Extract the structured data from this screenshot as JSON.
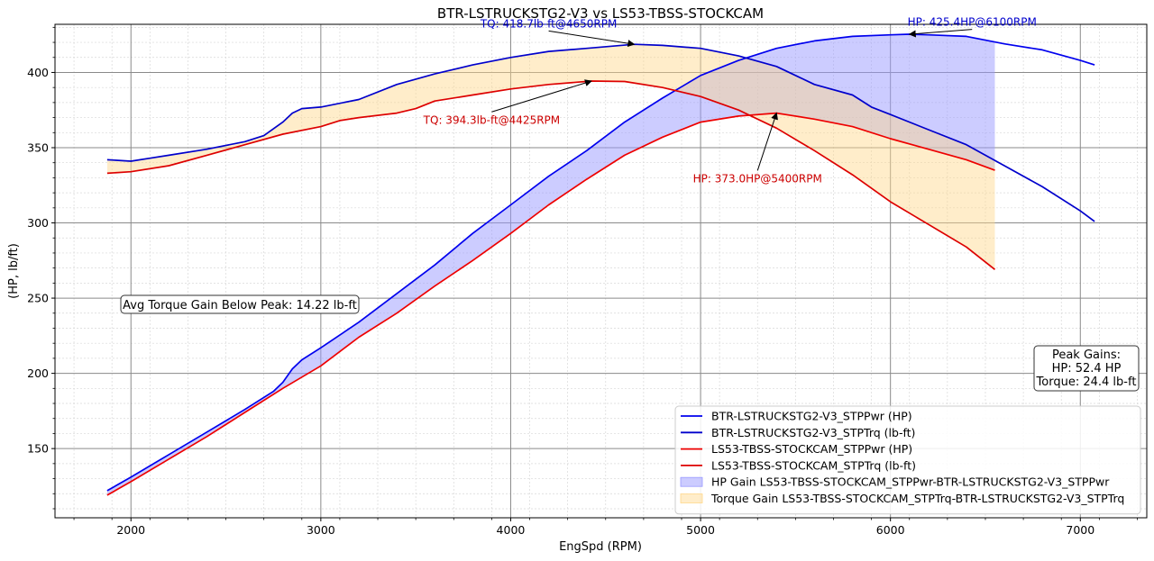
{
  "chart_data": {
    "type": "line",
    "title": "BTR-LSTRUCKSTG2-V3 vs LS53-TBSS-STOCKCAM",
    "xlabel": "EngSpd (RPM)",
    "ylabel": "(HP, lb/ft)",
    "xlim": [
      1600,
      7350
    ],
    "ylim": [
      104,
      432
    ],
    "xticks": [
      2000,
      3000,
      4000,
      5000,
      6000,
      7000
    ],
    "yticks": [
      150,
      200,
      250,
      300,
      350,
      400
    ],
    "grid": true,
    "legend_position": "lower-right",
    "series": [
      {
        "name": "BTR-LSTRUCKSTG2-V3_STPPwr (HP)",
        "color": "#0000ee",
        "points": [
          [
            1875,
            122
          ],
          [
            2000,
            131
          ],
          [
            2200,
            146
          ],
          [
            2400,
            161
          ],
          [
            2600,
            176
          ],
          [
            2750,
            188
          ],
          [
            2800,
            194
          ],
          [
            2850,
            203
          ],
          [
            2900,
            209
          ],
          [
            3000,
            217
          ],
          [
            3200,
            234
          ],
          [
            3400,
            253
          ],
          [
            3600,
            272
          ],
          [
            3800,
            293
          ],
          [
            4000,
            312
          ],
          [
            4200,
            331
          ],
          [
            4400,
            348
          ],
          [
            4600,
            367
          ],
          [
            4800,
            383
          ],
          [
            5000,
            398
          ],
          [
            5200,
            408
          ],
          [
            5400,
            416
          ],
          [
            5600,
            421
          ],
          [
            5800,
            424
          ],
          [
            6000,
            425
          ],
          [
            6100,
            425.4
          ],
          [
            6200,
            425
          ],
          [
            6400,
            424
          ],
          [
            6600,
            419
          ],
          [
            6800,
            415
          ],
          [
            7000,
            408
          ],
          [
            7075,
            405
          ]
        ]
      },
      {
        "name": "BTR-LSTRUCKSTG2-V3_STPTrq (lb-ft)",
        "color": "#0000cc",
        "points": [
          [
            1875,
            342
          ],
          [
            2000,
            341
          ],
          [
            2100,
            343
          ],
          [
            2200,
            345
          ],
          [
            2400,
            349
          ],
          [
            2600,
            354
          ],
          [
            2700,
            358
          ],
          [
            2800,
            367
          ],
          [
            2850,
            373
          ],
          [
            2900,
            376
          ],
          [
            3000,
            377
          ],
          [
            3200,
            382
          ],
          [
            3400,
            392
          ],
          [
            3600,
            399
          ],
          [
            3800,
            405
          ],
          [
            4000,
            410
          ],
          [
            4200,
            414
          ],
          [
            4400,
            416
          ],
          [
            4650,
            418.7
          ],
          [
            4800,
            418
          ],
          [
            5000,
            416
          ],
          [
            5200,
            411
          ],
          [
            5400,
            404
          ],
          [
            5500,
            398
          ],
          [
            5600,
            392
          ],
          [
            5800,
            385
          ],
          [
            5900,
            377
          ],
          [
            6000,
            372
          ],
          [
            6200,
            362
          ],
          [
            6400,
            352
          ],
          [
            6600,
            338
          ],
          [
            6800,
            324
          ],
          [
            7000,
            308
          ],
          [
            7075,
            301
          ]
        ]
      },
      {
        "name": "LS53-TBSS-STOCKCAM_STPPwr (HP)",
        "color": "#ee0000",
        "points": [
          [
            1875,
            119
          ],
          [
            2000,
            128
          ],
          [
            2200,
            143
          ],
          [
            2400,
            158
          ],
          [
            2600,
            174
          ],
          [
            2800,
            190
          ],
          [
            3000,
            205
          ],
          [
            3200,
            224
          ],
          [
            3400,
            240
          ],
          [
            3600,
            258
          ],
          [
            3800,
            275
          ],
          [
            4000,
            293
          ],
          [
            4200,
            312
          ],
          [
            4400,
            329
          ],
          [
            4600,
            345
          ],
          [
            4800,
            357
          ],
          [
            5000,
            367
          ],
          [
            5200,
            371
          ],
          [
            5400,
            373
          ],
          [
            5600,
            369
          ],
          [
            5800,
            364
          ],
          [
            6000,
            356
          ],
          [
            6200,
            349
          ],
          [
            6400,
            342
          ],
          [
            6550,
            335
          ]
        ]
      },
      {
        "name": "LS53-TBSS-STOCKCAM_STPTrq (lb-ft)",
        "color": "#dd0000",
        "points": [
          [
            1875,
            333
          ],
          [
            2000,
            334
          ],
          [
            2200,
            338
          ],
          [
            2400,
            345
          ],
          [
            2600,
            352
          ],
          [
            2800,
            359
          ],
          [
            3000,
            364
          ],
          [
            3100,
            368
          ],
          [
            3200,
            370
          ],
          [
            3400,
            373
          ],
          [
            3500,
            376
          ],
          [
            3600,
            381
          ],
          [
            3800,
            385
          ],
          [
            4000,
            389
          ],
          [
            4200,
            392
          ],
          [
            4425,
            394.3
          ],
          [
            4600,
            394
          ],
          [
            4800,
            390
          ],
          [
            5000,
            384
          ],
          [
            5200,
            375
          ],
          [
            5400,
            363
          ],
          [
            5600,
            348
          ],
          [
            5800,
            332
          ],
          [
            6000,
            314
          ],
          [
            6200,
            299
          ],
          [
            6400,
            284
          ],
          [
            6550,
            269
          ]
        ]
      }
    ],
    "fills": [
      {
        "name": "HP Gain LS53-TBSS-STOCKCAM_STPPwr-BTR-LSTRUCKSTG2-V3_STPPwr",
        "color": "#9999ff",
        "between": [
          0,
          2
        ],
        "x_range": [
          1875,
          6550
        ]
      },
      {
        "name": "Torque Gain LS53-TBSS-STOCKCAM_STPTrq-BTR-LSTRUCKSTG2-V3_STPTrq",
        "color": "#ffd88a",
        "between": [
          1,
          3
        ],
        "x_range": [
          1875,
          6550
        ]
      }
    ],
    "annotations": [
      {
        "text": "TQ: 418.7lb-ft@4650RPM",
        "color": "#0000cc",
        "x": 4650,
        "y": 418.7,
        "text_x": 4200,
        "text_y": 430
      },
      {
        "text": "HP: 425.4HP@6100RPM",
        "color": "#0000cc",
        "x": 6100,
        "y": 425.4,
        "text_x": 6430,
        "text_y": 431
      },
      {
        "text": "TQ: 394.3lb-ft@4425RPM",
        "color": "#cc0000",
        "x": 4425,
        "y": 394.3,
        "text_x": 3900,
        "text_y": 366
      },
      {
        "text": "HP: 373.0HP@5400RPM",
        "color": "#cc0000",
        "x": 5400,
        "y": 373.0,
        "text_x": 5300,
        "text_y": 327
      }
    ],
    "avg_torque_box": "Avg Torque Gain Below Peak: 14.22 lb-ft",
    "peak_gains": {
      "heading": "Peak Gains:",
      "hp": "HP: 52.4 HP",
      "torque": "Torque: 24.4 lb-ft"
    }
  }
}
